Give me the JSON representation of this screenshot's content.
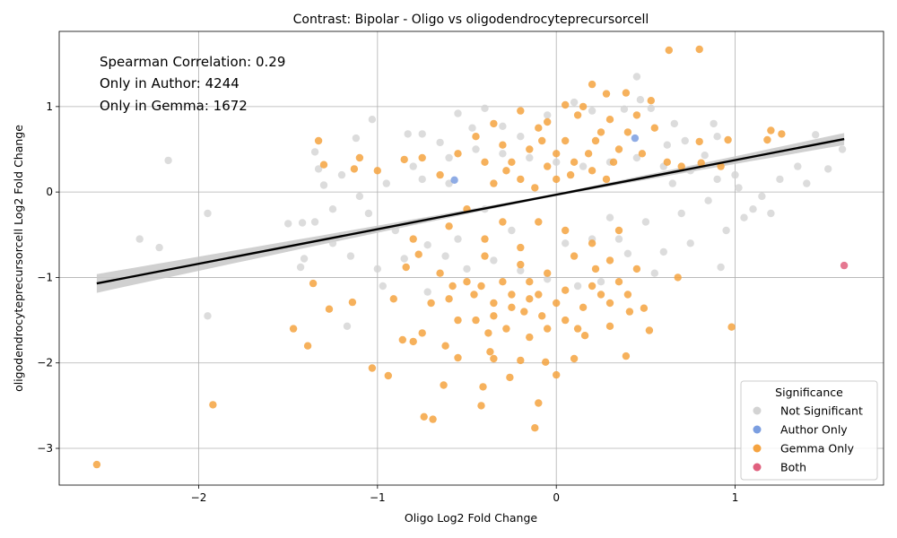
{
  "chart_data": {
    "type": "scatter",
    "title": "Contrast: Bipolar - Oligo vs oligodendrocyteprecursorcell",
    "xlabel": "Oligo Log2 Fold Change",
    "ylabel": "oligodendrocyteprecursorcell Log2 Fold Change",
    "xlim": [
      -2.78,
      1.83
    ],
    "ylim": [
      -3.43,
      1.88
    ],
    "x_ticks": [
      -2,
      -1,
      0,
      1
    ],
    "y_ticks": [
      -3,
      -2,
      -1,
      0,
      1
    ],
    "x_tick_labels": [
      "−2",
      "−1",
      "0",
      "1"
    ],
    "y_tick_labels": [
      "−3",
      "−2",
      "−1",
      "0",
      "1"
    ],
    "grid": true,
    "legend_position": "bottom-right",
    "annotations": [
      "Spearman Correlation: 0.29",
      "Only in Author: 4244",
      "Only in Gemma: 1672"
    ],
    "legend": {
      "title": "Significance",
      "entries": [
        {
          "label": "Not Significant",
          "color": "#d3d3d3"
        },
        {
          "label": "Author Only",
          "color": "#7b9ee0"
        },
        {
          "label": "Gemma Only",
          "color": "#f5a340"
        },
        {
          "label": "Both",
          "color": "#e0607e"
        }
      ]
    },
    "regression": {
      "x": [
        -2.57,
        1.61
      ],
      "y": [
        -1.07,
        0.62
      ],
      "band_color": "#c8c8c8"
    },
    "series": [
      {
        "name": "Not Significant",
        "color": "#d3d3d3",
        "points": [
          [
            -2.17,
            0.37
          ],
          [
            -2.33,
            -0.55
          ],
          [
            -2.22,
            -0.65
          ],
          [
            -1.95,
            -0.25
          ],
          [
            -1.95,
            -1.45
          ],
          [
            -1.5,
            -0.37
          ],
          [
            -1.42,
            -0.36
          ],
          [
            -1.41,
            -0.78
          ],
          [
            -1.43,
            -0.88
          ],
          [
            -1.35,
            0.47
          ],
          [
            -1.33,
            0.27
          ],
          [
            -1.3,
            0.08
          ],
          [
            -1.2,
            0.2
          ],
          [
            -1.17,
            -1.57
          ],
          [
            -1.12,
            0.63
          ],
          [
            -1.03,
            0.85
          ],
          [
            -0.97,
            -1.1
          ],
          [
            -0.83,
            0.68
          ],
          [
            -0.75,
            0.68
          ],
          [
            -0.72,
            -0.62
          ],
          [
            -0.65,
            0.58
          ],
          [
            -0.55,
            0.92
          ],
          [
            -0.47,
            0.75
          ],
          [
            -0.4,
            0.98
          ],
          [
            -0.3,
            0.77
          ],
          [
            -0.2,
            0.65
          ],
          [
            -0.05,
            0.9
          ],
          [
            0.1,
            1.05
          ],
          [
            0.2,
            0.95
          ],
          [
            0.38,
            0.97
          ],
          [
            0.47,
            1.08
          ],
          [
            0.53,
            0.98
          ],
          [
            0.62,
            0.55
          ],
          [
            0.66,
            0.8
          ],
          [
            0.72,
            0.6
          ],
          [
            0.88,
            0.8
          ],
          [
            0.9,
            0.65
          ],
          [
            0.83,
            0.43
          ],
          [
            1.0,
            0.2
          ],
          [
            1.02,
            0.05
          ],
          [
            1.1,
            -0.2
          ],
          [
            1.2,
            -0.25
          ],
          [
            1.35,
            0.3
          ],
          [
            1.4,
            0.1
          ],
          [
            1.45,
            0.67
          ],
          [
            1.52,
            0.27
          ],
          [
            1.6,
            0.5
          ],
          [
            1.05,
            -0.3
          ],
          [
            0.92,
            -0.88
          ],
          [
            0.75,
            -0.6
          ],
          [
            0.6,
            -0.7
          ],
          [
            0.55,
            -0.95
          ],
          [
            0.4,
            -0.72
          ],
          [
            0.25,
            -1.05
          ],
          [
            0.12,
            -1.1
          ],
          [
            -0.05,
            -1.02
          ],
          [
            -0.2,
            -0.92
          ],
          [
            -0.35,
            -0.8
          ],
          [
            -0.5,
            -0.9
          ],
          [
            -0.62,
            -0.75
          ],
          [
            -0.72,
            -1.17
          ],
          [
            -0.85,
            -0.78
          ],
          [
            -1.0,
            -0.9
          ],
          [
            -1.15,
            -0.75
          ],
          [
            -1.25,
            -0.6
          ],
          [
            -1.35,
            -0.35
          ],
          [
            -1.25,
            -0.2
          ],
          [
            -1.1,
            -0.05
          ],
          [
            -0.95,
            0.1
          ],
          [
            -0.8,
            0.3
          ],
          [
            -0.6,
            0.4
          ],
          [
            -0.45,
            0.5
          ],
          [
            -0.3,
            0.45
          ],
          [
            -0.15,
            0.4
          ],
          [
            0.0,
            0.35
          ],
          [
            0.15,
            0.3
          ],
          [
            0.3,
            0.35
          ],
          [
            0.45,
            0.4
          ],
          [
            0.6,
            0.3
          ],
          [
            0.75,
            0.25
          ],
          [
            0.9,
            0.15
          ],
          [
            0.3,
            -0.3
          ],
          [
            0.5,
            -0.35
          ],
          [
            0.7,
            -0.25
          ],
          [
            0.85,
            -0.1
          ],
          [
            0.45,
            1.35
          ],
          [
            -0.6,
            0.1
          ],
          [
            0.2,
            -0.55
          ],
          [
            -0.25,
            -0.45
          ],
          [
            -0.9,
            -0.45
          ],
          [
            -1.05,
            -0.25
          ],
          [
            0.95,
            -0.45
          ],
          [
            1.15,
            -0.05
          ],
          [
            0.35,
            -0.55
          ],
          [
            0.65,
            0.1
          ],
          [
            -0.4,
            -0.2
          ],
          [
            -0.75,
            0.15
          ],
          [
            -0.55,
            -0.55
          ],
          [
            0.05,
            -0.6
          ],
          [
            1.25,
            0.15
          ]
        ]
      },
      {
        "name": "Author Only",
        "color": "#7b9ee0",
        "points": [
          [
            0.44,
            0.63
          ],
          [
            -0.57,
            0.14
          ]
        ]
      },
      {
        "name": "Gemma Only",
        "color": "#f5a340",
        "points": [
          [
            -2.57,
            -3.19
          ],
          [
            -1.92,
            -2.49
          ],
          [
            -1.47,
            -1.6
          ],
          [
            -1.39,
            -1.8
          ],
          [
            -1.36,
            -1.07
          ],
          [
            -1.27,
            -1.37
          ],
          [
            -1.14,
            -1.29
          ],
          [
            -1.03,
            -2.06
          ],
          [
            -0.94,
            -2.15
          ],
          [
            -0.74,
            -2.63
          ],
          [
            -0.69,
            -2.66
          ],
          [
            -0.63,
            -2.26
          ],
          [
            -0.42,
            -2.5
          ],
          [
            -0.41,
            -2.28
          ],
          [
            -0.26,
            -2.17
          ],
          [
            -0.12,
            -2.76
          ],
          [
            -0.1,
            -2.47
          ],
          [
            0.0,
            -2.14
          ],
          [
            0.39,
            -1.92
          ],
          [
            0.98,
            -1.58
          ],
          [
            -1.33,
            0.6
          ],
          [
            -1.3,
            0.32
          ],
          [
            -1.13,
            0.27
          ],
          [
            0.63,
            1.66
          ],
          [
            0.8,
            1.67
          ],
          [
            0.2,
            1.26
          ],
          [
            0.39,
            1.16
          ],
          [
            0.28,
            1.15
          ],
          [
            0.53,
            1.07
          ],
          [
            1.2,
            0.72
          ],
          [
            1.26,
            0.68
          ],
          [
            1.18,
            0.61
          ],
          [
            0.96,
            0.61
          ],
          [
            0.92,
            0.3
          ],
          [
            0.81,
            0.34
          ],
          [
            0.8,
            0.59
          ],
          [
            0.68,
            -1.0
          ],
          [
            0.52,
            -1.62
          ],
          [
            0.41,
            -1.4
          ],
          [
            0.49,
            -1.36
          ],
          [
            0.3,
            -1.57
          ],
          [
            0.16,
            -1.68
          ],
          [
            -0.2,
            -1.97
          ],
          [
            -0.06,
            -1.99
          ],
          [
            -0.37,
            -1.87
          ],
          [
            -0.55,
            -1.94
          ],
          [
            -0.8,
            -1.75
          ],
          [
            -0.86,
            -1.73
          ],
          [
            -0.91,
            -1.25
          ],
          [
            -0.84,
            -0.88
          ],
          [
            -0.77,
            -0.73
          ],
          [
            -0.7,
            -1.3
          ],
          [
            -0.6,
            -1.25
          ],
          [
            -0.45,
            -1.5
          ],
          [
            -0.35,
            -1.3
          ],
          [
            -0.28,
            -1.6
          ],
          [
            -0.18,
            -1.4
          ],
          [
            -0.1,
            -1.2
          ],
          [
            0.05,
            -1.15
          ],
          [
            0.15,
            -1.35
          ],
          [
            0.25,
            -1.2
          ],
          [
            0.35,
            -1.05
          ],
          [
            0.45,
            -0.9
          ],
          [
            -0.5,
            -1.05
          ],
          [
            -0.4,
            -0.75
          ],
          [
            -0.3,
            -1.05
          ],
          [
            -0.2,
            -0.85
          ],
          [
            -0.05,
            -0.95
          ],
          [
            0.1,
            -0.75
          ],
          [
            0.22,
            -0.9
          ],
          [
            -0.65,
            -0.95
          ],
          [
            -0.55,
            -1.5
          ],
          [
            -0.15,
            -1.7
          ],
          [
            0.05,
            -1.5
          ],
          [
            -0.38,
            -1.65
          ],
          [
            -0.25,
            -1.35
          ],
          [
            -0.46,
            -1.2
          ],
          [
            0.12,
            -1.6
          ],
          [
            -0.08,
            -1.45
          ],
          [
            0.3,
            -1.3
          ],
          [
            -0.75,
            -1.65
          ],
          [
            -0.62,
            -1.8
          ],
          [
            -0.35,
            -1.95
          ],
          [
            0.1,
            -1.95
          ],
          [
            -0.5,
            -0.2
          ],
          [
            -0.35,
            0.1
          ],
          [
            -0.25,
            0.35
          ],
          [
            -0.15,
            0.5
          ],
          [
            -0.05,
            0.3
          ],
          [
            0.05,
            0.6
          ],
          [
            0.12,
            0.9
          ],
          [
            0.18,
            0.45
          ],
          [
            0.25,
            0.7
          ],
          [
            -0.1,
            0.75
          ],
          [
            0.0,
            0.45
          ],
          [
            0.08,
            0.2
          ],
          [
            -0.2,
            0.15
          ],
          [
            -0.3,
            0.55
          ],
          [
            0.3,
            0.85
          ],
          [
            0.35,
            0.5
          ],
          [
            -0.4,
            0.35
          ],
          [
            -0.45,
            0.65
          ],
          [
            -0.55,
            0.45
          ],
          [
            -0.65,
            0.2
          ],
          [
            0.15,
            1.0
          ],
          [
            0.05,
            1.02
          ],
          [
            -0.2,
            0.95
          ],
          [
            -0.05,
            0.82
          ],
          [
            0.45,
            0.9
          ],
          [
            0.55,
            0.75
          ],
          [
            0.62,
            0.35
          ],
          [
            0.7,
            0.3
          ],
          [
            0.4,
            0.7
          ],
          [
            0.48,
            0.45
          ],
          [
            -0.75,
            0.4
          ],
          [
            -0.85,
            0.38
          ],
          [
            -1.0,
            0.25
          ],
          [
            -1.1,
            0.4
          ],
          [
            0.2,
            0.25
          ],
          [
            0.28,
            0.15
          ],
          [
            -0.12,
            0.05
          ],
          [
            0.0,
            0.15
          ],
          [
            0.1,
            0.35
          ],
          [
            -0.28,
            0.25
          ],
          [
            -0.08,
            0.6
          ],
          [
            0.22,
            0.6
          ],
          [
            -0.35,
            0.8
          ],
          [
            0.32,
            0.35
          ],
          [
            -0.6,
            -0.4
          ],
          [
            -0.4,
            -0.55
          ],
          [
            -0.2,
            -0.65
          ],
          [
            0.05,
            -0.45
          ],
          [
            0.2,
            -0.6
          ],
          [
            -0.3,
            -0.35
          ],
          [
            -0.1,
            -0.35
          ],
          [
            0.35,
            -0.45
          ],
          [
            -0.8,
            -0.55
          ],
          [
            -0.15,
            -1.05
          ],
          [
            0.0,
            -1.3
          ],
          [
            0.2,
            -1.1
          ],
          [
            -0.42,
            -1.1
          ],
          [
            -0.25,
            -1.2
          ],
          [
            -0.05,
            -1.6
          ],
          [
            0.3,
            -0.8
          ],
          [
            0.4,
            -1.2
          ],
          [
            -0.58,
            -1.1
          ],
          [
            -0.35,
            -1.45
          ],
          [
            -0.15,
            -1.25
          ]
        ]
      },
      {
        "name": "Both",
        "color": "#e0607e",
        "points": [
          [
            1.61,
            -0.86
          ]
        ]
      }
    ]
  }
}
